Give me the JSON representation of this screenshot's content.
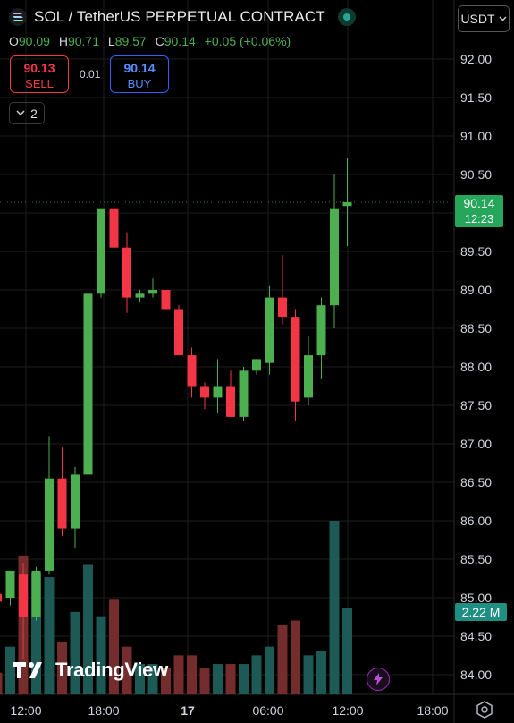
{
  "header": {
    "title": "SOL / TetherUS PERPETUAL CONTRACT",
    "currency": "USDT",
    "collapse_count": "2"
  },
  "ohlc": {
    "o_label": "O",
    "o": "90.09",
    "h_label": "H",
    "h": "90.71",
    "l_label": "L",
    "l": "89.57",
    "c_label": "C",
    "c": "90.14",
    "change": "+0.05 (+0.06%)"
  },
  "trade": {
    "sell_price": "90.13",
    "sell_label": "SELL",
    "buy_price": "90.14",
    "buy_label": "BUY",
    "spread": "0.01"
  },
  "price_tag": {
    "price": "90.14",
    "countdown": "12:23"
  },
  "volume_tag": "2.22 M",
  "brand": "TradingView",
  "colors": {
    "up": "#4caf50",
    "down": "#f23645",
    "vol_up": "#1f5f5a",
    "vol_down": "#7a2e2e",
    "grid": "#1e1e1e"
  },
  "chart_data": {
    "type": "candlestick",
    "y_ticks": [
      "92.00",
      "91.50",
      "91.00",
      "90.50",
      "90.00",
      "89.50",
      "89.00",
      "88.50",
      "88.00",
      "87.50",
      "87.00",
      "86.50",
      "86.00",
      "85.50",
      "85.00",
      "84.50",
      "84.00"
    ],
    "ylim": [
      83.8,
      92.3
    ],
    "x_ticks": [
      "12:00",
      "18:00",
      "17",
      "06:00",
      "12:00",
      "18:00"
    ],
    "grid": true,
    "candles": [
      {
        "o": 85.05,
        "h": 85.15,
        "l": 84.95,
        "c": 84.95,
        "v": 0.25
      },
      {
        "o": 85.0,
        "h": 85.3,
        "l": 84.9,
        "c": 85.35,
        "v": 0.55
      },
      {
        "o": 85.3,
        "h": 85.45,
        "l": 84.2,
        "c": 84.75,
        "v": 1.6
      },
      {
        "o": 84.75,
        "h": 85.4,
        "l": 84.7,
        "c": 85.35,
        "v": 1.4
      },
      {
        "o": 85.35,
        "h": 87.1,
        "l": 85.3,
        "c": 86.55,
        "v": 1.35
      },
      {
        "o": 86.55,
        "h": 86.95,
        "l": 85.8,
        "c": 85.9,
        "v": 0.6
      },
      {
        "o": 85.9,
        "h": 86.7,
        "l": 85.65,
        "c": 86.6,
        "v": 0.95
      },
      {
        "o": 86.6,
        "h": 88.95,
        "l": 86.5,
        "c": 88.95,
        "v": 1.5
      },
      {
        "o": 88.95,
        "h": 90.05,
        "l": 88.9,
        "c": 90.05,
        "v": 0.9
      },
      {
        "o": 90.05,
        "h": 90.55,
        "l": 89.1,
        "c": 89.55,
        "v": 1.1
      },
      {
        "o": 89.55,
        "h": 89.75,
        "l": 88.7,
        "c": 88.9,
        "v": 0.55
      },
      {
        "o": 88.9,
        "h": 89.0,
        "l": 88.85,
        "c": 88.95,
        "v": 0.35
      },
      {
        "o": 88.95,
        "h": 89.15,
        "l": 88.9,
        "c": 89.0,
        "v": 0.35
      },
      {
        "o": 89.0,
        "h": 89.0,
        "l": 88.75,
        "c": 88.75,
        "v": 0.3
      },
      {
        "o": 88.75,
        "h": 88.8,
        "l": 88.15,
        "c": 88.15,
        "v": 0.45
      },
      {
        "o": 88.15,
        "h": 88.25,
        "l": 87.6,
        "c": 87.75,
        "v": 0.45
      },
      {
        "o": 87.75,
        "h": 87.8,
        "l": 87.45,
        "c": 87.6,
        "v": 0.3
      },
      {
        "o": 87.6,
        "h": 88.1,
        "l": 87.4,
        "c": 87.75,
        "v": 0.35
      },
      {
        "o": 87.75,
        "h": 87.95,
        "l": 87.35,
        "c": 87.35,
        "v": 0.35
      },
      {
        "o": 87.35,
        "h": 88.0,
        "l": 87.3,
        "c": 87.95,
        "v": 0.35
      },
      {
        "o": 87.95,
        "h": 88.1,
        "l": 87.9,
        "c": 88.1,
        "v": 0.45
      },
      {
        "o": 88.05,
        "h": 89.05,
        "l": 87.9,
        "c": 88.9,
        "v": 0.55
      },
      {
        "o": 88.9,
        "h": 89.45,
        "l": 88.55,
        "c": 88.65,
        "v": 0.8
      },
      {
        "o": 88.65,
        "h": 88.75,
        "l": 87.3,
        "c": 87.55,
        "v": 0.85
      },
      {
        "o": 87.6,
        "h": 88.4,
        "l": 87.5,
        "c": 88.15,
        "v": 0.45
      },
      {
        "o": 88.15,
        "h": 88.9,
        "l": 87.85,
        "c": 88.8,
        "v": 0.5
      },
      {
        "o": 88.8,
        "h": 90.5,
        "l": 88.5,
        "c": 90.05,
        "v": 2.0
      },
      {
        "o": 90.09,
        "h": 90.71,
        "l": 89.57,
        "c": 90.14,
        "v": 1.0
      }
    ]
  }
}
